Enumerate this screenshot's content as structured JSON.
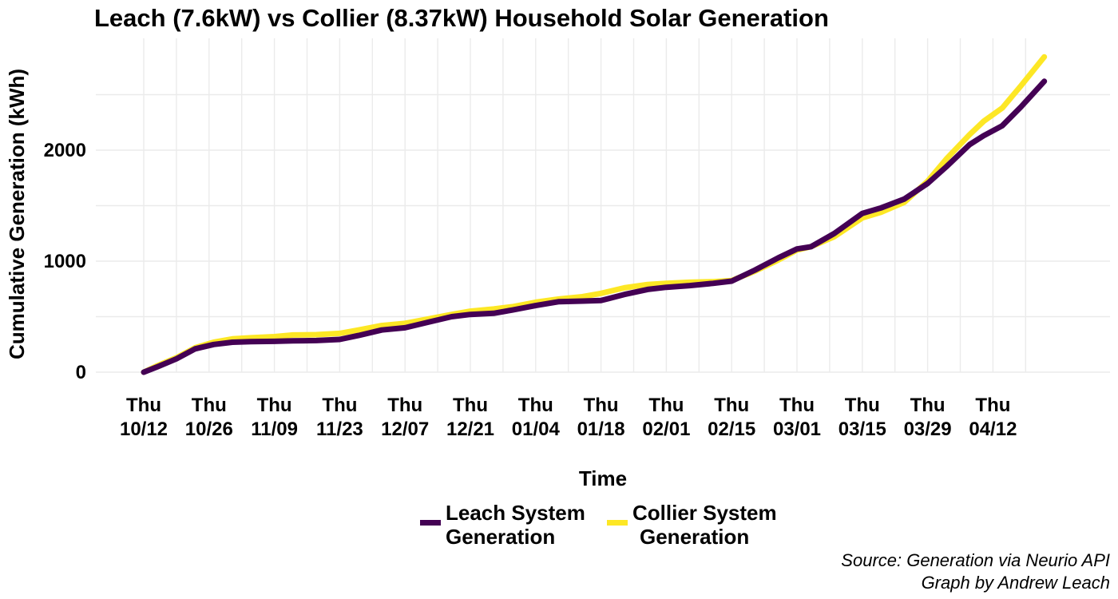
{
  "chart_data": {
    "type": "line",
    "title": "Leach (7.6kW) vs Collier (8.37kW) Household Solar Generation",
    "xlabel": "Time",
    "ylabel": "Cumulative Generation (kWh)",
    "x_unit": "date",
    "x_range": [
      "2017-10-12",
      "2018-04-23"
    ],
    "ylim": [
      0,
      2850
    ],
    "y_ticks": [
      0,
      1000,
      2000
    ],
    "x_ticks": [
      {
        "date": "2017-10-12",
        "line1": "Thu",
        "line2": "10/12"
      },
      {
        "date": "2017-10-26",
        "line1": "Thu",
        "line2": "10/26"
      },
      {
        "date": "2017-11-09",
        "line1": "Thu",
        "line2": "11/09"
      },
      {
        "date": "2017-11-23",
        "line1": "Thu",
        "line2": "11/23"
      },
      {
        "date": "2017-12-07",
        "line1": "Thu",
        "line2": "12/07"
      },
      {
        "date": "2017-12-21",
        "line1": "Thu",
        "line2": "12/21"
      },
      {
        "date": "2018-01-04",
        "line1": "Thu",
        "line2": "01/04"
      },
      {
        "date": "2018-01-18",
        "line1": "Thu",
        "line2": "01/18"
      },
      {
        "date": "2018-02-01",
        "line1": "Thu",
        "line2": "02/01"
      },
      {
        "date": "2018-02-15",
        "line1": "Thu",
        "line2": "02/15"
      },
      {
        "date": "2018-03-01",
        "line1": "Thu",
        "line2": "03/01"
      },
      {
        "date": "2018-03-15",
        "line1": "Thu",
        "line2": "03/15"
      },
      {
        "date": "2018-03-29",
        "line1": "Thu",
        "line2": "03/29"
      },
      {
        "date": "2018-04-12",
        "line1": "Thu",
        "line2": "04/12"
      }
    ],
    "grid": true,
    "legend_position": "bottom",
    "series": [
      {
        "name": "Collier System Generation",
        "legend_line1": "Collier System",
        "legend_line2": "Generation",
        "color": "#FDE725",
        "points": [
          [
            "2017-10-12",
            0
          ],
          [
            "2017-10-15",
            60
          ],
          [
            "2017-10-19",
            130
          ],
          [
            "2017-10-23",
            220
          ],
          [
            "2017-10-27",
            270
          ],
          [
            "2017-10-31",
            300
          ],
          [
            "2017-11-04",
            310
          ],
          [
            "2017-11-09",
            320
          ],
          [
            "2017-11-13",
            335
          ],
          [
            "2017-11-18",
            338
          ],
          [
            "2017-11-23",
            350
          ],
          [
            "2017-11-27",
            380
          ],
          [
            "2017-12-02",
            420
          ],
          [
            "2017-12-07",
            440
          ],
          [
            "2017-12-12",
            480
          ],
          [
            "2017-12-17",
            520
          ],
          [
            "2017-12-21",
            550
          ],
          [
            "2017-12-26",
            570
          ],
          [
            "2017-12-30",
            590
          ],
          [
            "2018-01-04",
            630
          ],
          [
            "2018-01-09",
            660
          ],
          [
            "2018-01-14",
            680
          ],
          [
            "2018-01-18",
            710
          ],
          [
            "2018-01-23",
            760
          ],
          [
            "2018-01-28",
            790
          ],
          [
            "2018-02-01",
            800
          ],
          [
            "2018-02-06",
            810
          ],
          [
            "2018-02-11",
            815
          ],
          [
            "2018-02-15",
            825
          ],
          [
            "2018-02-20",
            910
          ],
          [
            "2018-02-25",
            1010
          ],
          [
            "2018-03-01",
            1100
          ],
          [
            "2018-03-04",
            1130
          ],
          [
            "2018-03-09",
            1220
          ],
          [
            "2018-03-15",
            1390
          ],
          [
            "2018-03-19",
            1440
          ],
          [
            "2018-03-24",
            1530
          ],
          [
            "2018-03-29",
            1720
          ],
          [
            "2018-04-02",
            1920
          ],
          [
            "2018-04-07",
            2140
          ],
          [
            "2018-04-10",
            2260
          ],
          [
            "2018-04-14",
            2380
          ],
          [
            "2018-04-18",
            2580
          ],
          [
            "2018-04-23",
            2840
          ]
        ]
      },
      {
        "name": "Leach System Generation",
        "legend_line1": "Leach System",
        "legend_line2": "Generation",
        "color": "#440154",
        "points": [
          [
            "2017-10-12",
            0
          ],
          [
            "2017-10-15",
            50
          ],
          [
            "2017-10-19",
            120
          ],
          [
            "2017-10-23",
            210
          ],
          [
            "2017-10-27",
            250
          ],
          [
            "2017-10-31",
            270
          ],
          [
            "2017-11-04",
            275
          ],
          [
            "2017-11-09",
            278
          ],
          [
            "2017-11-13",
            282
          ],
          [
            "2017-11-18",
            285
          ],
          [
            "2017-11-23",
            295
          ],
          [
            "2017-11-27",
            330
          ],
          [
            "2017-12-02",
            380
          ],
          [
            "2017-12-07",
            400
          ],
          [
            "2017-12-12",
            450
          ],
          [
            "2017-12-17",
            500
          ],
          [
            "2017-12-21",
            520
          ],
          [
            "2017-12-26",
            530
          ],
          [
            "2017-12-30",
            560
          ],
          [
            "2018-01-04",
            600
          ],
          [
            "2018-01-09",
            635
          ],
          [
            "2018-01-14",
            640
          ],
          [
            "2018-01-18",
            645
          ],
          [
            "2018-01-23",
            700
          ],
          [
            "2018-01-28",
            745
          ],
          [
            "2018-02-01",
            765
          ],
          [
            "2018-02-06",
            780
          ],
          [
            "2018-02-11",
            800
          ],
          [
            "2018-02-15",
            820
          ],
          [
            "2018-02-20",
            920
          ],
          [
            "2018-02-25",
            1030
          ],
          [
            "2018-03-01",
            1110
          ],
          [
            "2018-03-04",
            1130
          ],
          [
            "2018-03-09",
            1250
          ],
          [
            "2018-03-15",
            1430
          ],
          [
            "2018-03-19",
            1480
          ],
          [
            "2018-03-24",
            1560
          ],
          [
            "2018-03-29",
            1700
          ],
          [
            "2018-04-02",
            1850
          ],
          [
            "2018-04-07",
            2050
          ],
          [
            "2018-04-10",
            2130
          ],
          [
            "2018-04-14",
            2220
          ],
          [
            "2018-04-18",
            2390
          ],
          [
            "2018-04-23",
            2620
          ]
        ]
      }
    ],
    "legend_order": [
      "Leach System Generation",
      "Collier System Generation"
    ]
  },
  "caption": {
    "line1": "Source: Generation via Neurio API",
    "line2": "Graph by Andrew Leach"
  }
}
